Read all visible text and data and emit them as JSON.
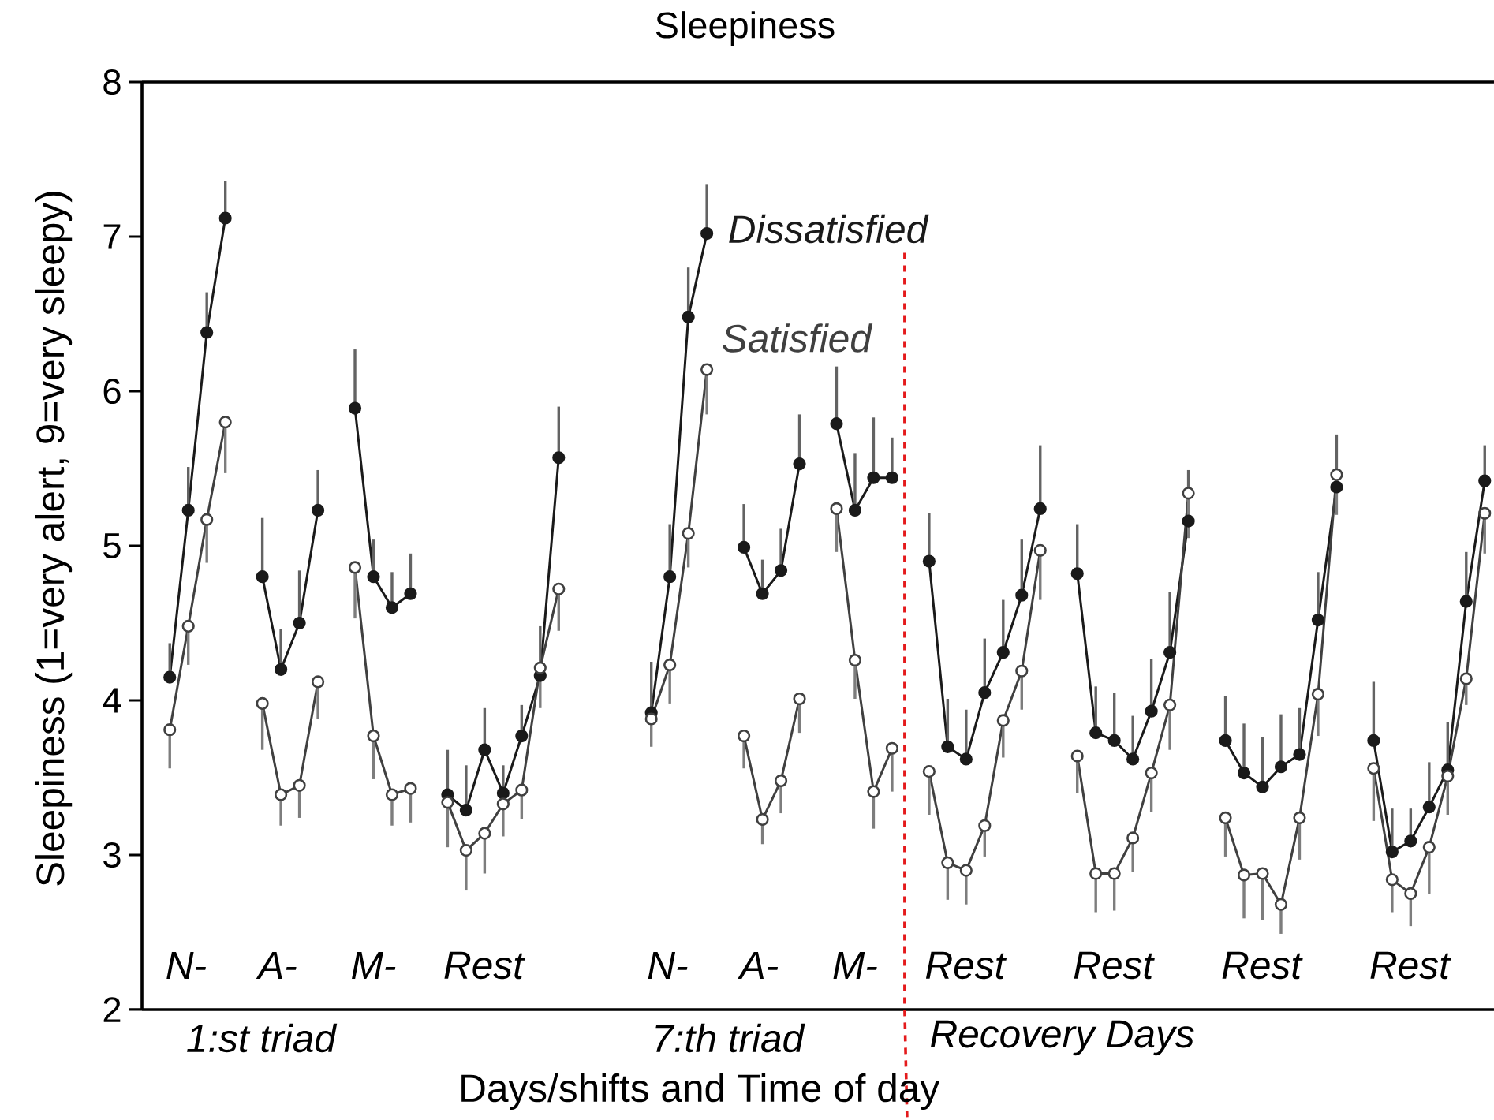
{
  "chart_data": {
    "type": "line",
    "title": "Sleepiness",
    "xlabel": "Days/shifts and Time of day",
    "ylabel": "Sleepiness (1=very alert, 9=very sleepy)",
    "categories": [
      null,
      null,
      null,
      null,
      null,
      null,
      null,
      null,
      null,
      null,
      null,
      null,
      null,
      null,
      null,
      null,
      null,
      null,
      null,
      null,
      null,
      null,
      null,
      null,
      null,
      null,
      null,
      null,
      null,
      null,
      null,
      null,
      null,
      null,
      null,
      null,
      null,
      null,
      null,
      null,
      null,
      null,
      null,
      null,
      null,
      null,
      null,
      null,
      null,
      null,
      null,
      null,
      null,
      null,
      null,
      null,
      null,
      null,
      null,
      null,
      null,
      null,
      null,
      null,
      null,
      null,
      null,
      null,
      null,
      null,
      null,
      null,
      null
    ],
    "ylim": [
      2,
      8
    ],
    "yticks": [
      2,
      3,
      4,
      5,
      6,
      7,
      8
    ],
    "marker": "circle",
    "line_style": "solid",
    "legend": "top",
    "series": [
      {
        "name": "Dissatisfied",
        "color": "#1a1a1a",
        "values": [
          null,
          4.15,
          5.23,
          6.38,
          7.12,
          null,
          4.8,
          4.2,
          4.5,
          5.23,
          null,
          5.89,
          4.8,
          4.6,
          4.69,
          null,
          3.39,
          3.29,
          3.68,
          3.4,
          3.77,
          4.16,
          5.57,
          null,
          null,
          null,
          null,
          3.92,
          4.8,
          6.48,
          7.02,
          null,
          4.99,
          4.69,
          4.84,
          5.53,
          null,
          5.79,
          5.23,
          5.44,
          5.44,
          null,
          4.9,
          3.7,
          3.62,
          4.05,
          4.31,
          4.68,
          5.24,
          null,
          4.82,
          3.79,
          3.74,
          3.62,
          3.93,
          4.31,
          5.16,
          null,
          3.74,
          3.53,
          3.44,
          3.57,
          3.65,
          4.52,
          5.38,
          null,
          3.74,
          3.02,
          3.09,
          3.31,
          3.55,
          4.64,
          5.42
        ],
        "errors": [
          null,
          [
            4.15,
            4.37
          ],
          [
            5.23,
            5.51
          ],
          [
            6.38,
            6.64
          ],
          [
            7.12,
            7.36
          ],
          null,
          [
            4.8,
            5.18
          ],
          [
            4.2,
            4.46
          ],
          [
            4.5,
            4.84
          ],
          [
            5.23,
            5.49
          ],
          null,
          [
            5.89,
            6.27
          ],
          [
            4.8,
            5.04
          ],
          [
            4.6,
            4.83
          ],
          [
            4.69,
            4.95
          ],
          null,
          [
            3.39,
            3.68
          ],
          [
            3.29,
            3.58
          ],
          [
            3.68,
            3.95
          ],
          [
            3.4,
            3.58
          ],
          [
            3.77,
            3.97
          ],
          [
            4.16,
            4.48
          ],
          [
            5.57,
            5.9
          ],
          null,
          null,
          null,
          null,
          [
            3.92,
            4.25
          ],
          [
            4.8,
            5.14
          ],
          [
            6.48,
            6.8
          ],
          [
            7.02,
            7.34
          ],
          null,
          [
            4.99,
            5.27
          ],
          [
            4.69,
            4.91
          ],
          [
            4.84,
            5.11
          ],
          [
            5.53,
            5.85
          ],
          null,
          [
            5.79,
            6.16
          ],
          [
            5.23,
            5.6
          ],
          [
            5.44,
            5.83
          ],
          [
            5.44,
            5.7
          ],
          null,
          [
            4.9,
            5.21
          ],
          [
            3.7,
            4.01
          ],
          [
            3.62,
            3.94
          ],
          [
            4.05,
            4.4
          ],
          [
            4.31,
            4.65
          ],
          [
            4.68,
            5.04
          ],
          [
            5.24,
            5.65
          ],
          null,
          [
            4.82,
            5.14
          ],
          [
            3.79,
            4.09
          ],
          [
            3.74,
            4.05
          ],
          [
            3.62,
            3.9
          ],
          [
            3.93,
            4.27
          ],
          [
            4.31,
            4.7
          ],
          [
            5.16,
            5.49
          ],
          null,
          [
            3.74,
            4.03
          ],
          [
            3.53,
            3.85
          ],
          [
            3.44,
            3.76
          ],
          [
            3.57,
            3.91
          ],
          [
            3.65,
            3.95
          ],
          [
            4.52,
            4.83
          ],
          [
            5.38,
            5.72
          ],
          null,
          [
            3.74,
            4.12
          ],
          [
            3.02,
            3.3
          ],
          [
            3.09,
            3.3
          ],
          [
            3.31,
            3.6
          ],
          [
            3.55,
            3.86
          ],
          [
            4.64,
            4.96
          ],
          [
            5.42,
            5.65
          ]
        ]
      },
      {
        "name": "Satisfied",
        "color": "#404040",
        "values": [
          null,
          3.81,
          4.48,
          5.17,
          5.8,
          null,
          3.98,
          3.39,
          3.45,
          4.12,
          null,
          4.86,
          3.77,
          3.39,
          3.43,
          null,
          3.34,
          3.03,
          3.14,
          3.33,
          3.42,
          4.21,
          4.72,
          null,
          null,
          null,
          null,
          3.88,
          4.23,
          5.08,
          6.14,
          null,
          3.77,
          3.23,
          3.48,
          4.01,
          null,
          5.24,
          4.26,
          3.41,
          3.69,
          null,
          3.54,
          2.95,
          2.9,
          3.19,
          3.87,
          4.19,
          4.97,
          null,
          3.64,
          2.88,
          2.88,
          3.11,
          3.53,
          3.97,
          5.34,
          null,
          3.24,
          2.87,
          2.88,
          2.68,
          3.24,
          4.04,
          5.46,
          null,
          3.56,
          2.84,
          2.75,
          3.05,
          3.51,
          4.14,
          5.21
        ],
        "errors": [
          null,
          [
            3.56,
            3.81
          ],
          [
            4.23,
            4.48
          ],
          [
            4.89,
            5.17
          ],
          [
            5.47,
            5.8
          ],
          null,
          [
            3.68,
            3.98
          ],
          [
            3.19,
            3.39
          ],
          [
            3.24,
            3.45
          ],
          [
            3.88,
            4.12
          ],
          null,
          [
            4.53,
            4.86
          ],
          [
            3.49,
            3.77
          ],
          [
            3.19,
            3.39
          ],
          [
            3.21,
            3.43
          ],
          null,
          [
            3.05,
            3.34
          ],
          [
            2.77,
            3.03
          ],
          [
            2.88,
            3.14
          ],
          [
            3.12,
            3.33
          ],
          [
            3.23,
            3.42
          ],
          [
            3.95,
            4.21
          ],
          [
            4.45,
            4.72
          ],
          null,
          null,
          null,
          null,
          [
            3.7,
            3.88
          ],
          [
            3.98,
            4.23
          ],
          [
            4.86,
            5.08
          ],
          [
            5.85,
            6.14
          ],
          null,
          [
            3.56,
            3.77
          ],
          [
            3.07,
            3.23
          ],
          [
            3.27,
            3.48
          ],
          [
            3.79,
            4.01
          ],
          null,
          [
            4.96,
            5.24
          ],
          [
            4.01,
            4.26
          ],
          [
            3.17,
            3.41
          ],
          [
            3.41,
            3.69
          ],
          null,
          [
            3.26,
            3.54
          ],
          [
            2.71,
            2.95
          ],
          [
            2.68,
            2.9
          ],
          [
            2.99,
            3.19
          ],
          [
            3.63,
            3.87
          ],
          [
            3.94,
            4.19
          ],
          [
            4.65,
            4.97
          ],
          null,
          [
            3.4,
            3.64
          ],
          [
            2.63,
            2.88
          ],
          [
            2.64,
            2.88
          ],
          [
            2.89,
            3.11
          ],
          [
            3.28,
            3.53
          ],
          [
            3.68,
            3.97
          ],
          [
            5.05,
            5.34
          ],
          null,
          [
            2.99,
            3.24
          ],
          [
            2.59,
            2.87
          ],
          [
            2.58,
            2.88
          ],
          [
            2.49,
            2.68
          ],
          [
            2.97,
            3.24
          ],
          [
            3.77,
            4.04
          ],
          [
            5.2,
            5.46
          ],
          null,
          [
            3.22,
            3.56
          ],
          [
            2.63,
            2.84
          ],
          [
            2.54,
            2.75
          ],
          [
            2.75,
            3.05
          ],
          [
            3.26,
            3.51
          ],
          [
            3.97,
            4.14
          ],
          [
            4.95,
            5.21
          ]
        ]
      }
    ],
    "annotations": [
      "N-",
      "A-",
      "M-",
      "Rest",
      "N-",
      "A-",
      "M-",
      "Rest",
      "Rest",
      "Rest",
      "Rest",
      "1:st triad",
      "7:th triad",
      "Recovery Days"
    ]
  }
}
